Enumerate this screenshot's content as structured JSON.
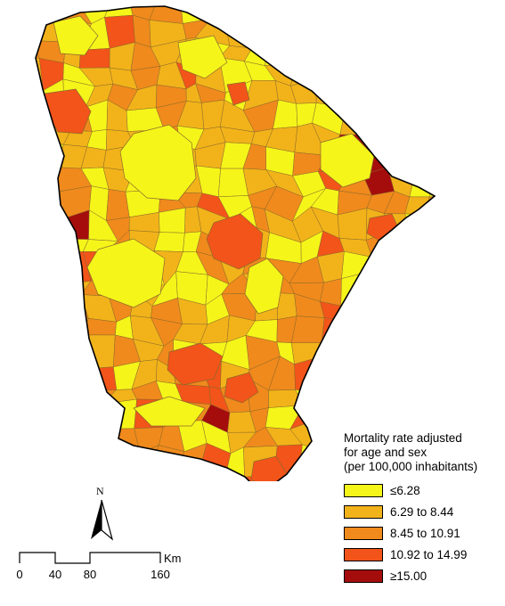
{
  "legend": {
    "title_lines": [
      "Mortality rate adjusted",
      "for age and sex",
      "(per 100,000 inhabitants)"
    ],
    "classes": [
      {
        "label": "≤6.28",
        "color": "#f5f51a"
      },
      {
        "label": "6.29 to 8.44",
        "color": "#f2b31a"
      },
      {
        "label": "8.45 to 10.91",
        "color": "#f08a1c"
      },
      {
        "label": "10.92 to 14.99",
        "color": "#f2541a"
      },
      {
        "label": "≥15.00",
        "color": "#a50d0d"
      }
    ]
  },
  "north_arrow": {
    "label": "N"
  },
  "scale_bar": {
    "ticks": [
      "0",
      "40",
      "80",
      "160"
    ],
    "unit": "Km"
  },
  "map": {
    "border_color": "#000000",
    "internal_border_color": "#8a6a2a"
  }
}
